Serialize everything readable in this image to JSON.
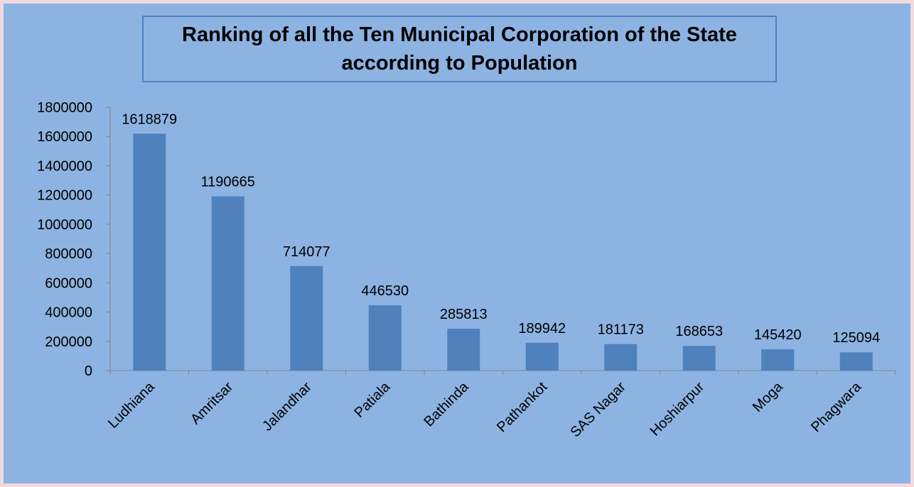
{
  "chart_data": {
    "type": "bar",
    "title": "Ranking of all the Ten Municipal Corporation of the State according to Population",
    "categories": [
      "Ludhiana",
      "Amritsar",
      "Jalandhar",
      "Patiala",
      "Bathinda",
      "Pathankot",
      "SAS Nagar",
      "Hoshiarpur",
      "Moga",
      "Phagwara"
    ],
    "values": [
      1618879,
      1190665,
      714077,
      446530,
      285813,
      189942,
      181173,
      168653,
      145420,
      125094
    ],
    "color": "#4f81bd",
    "ylim": [
      0,
      1800000
    ],
    "yticks": [
      0,
      200000,
      400000,
      600000,
      800000,
      1000000,
      1200000,
      1400000,
      1600000,
      1800000
    ],
    "grid": false
  }
}
